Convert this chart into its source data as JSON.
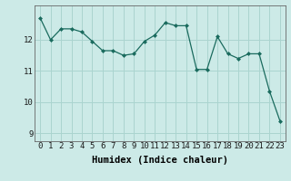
{
  "x": [
    0,
    1,
    2,
    3,
    4,
    5,
    6,
    7,
    8,
    9,
    10,
    11,
    12,
    13,
    14,
    15,
    16,
    17,
    18,
    19,
    20,
    21,
    22,
    23
  ],
  "y": [
    12.7,
    12.0,
    12.35,
    12.35,
    12.25,
    11.95,
    11.65,
    11.65,
    11.5,
    11.55,
    11.95,
    12.15,
    12.55,
    12.45,
    12.45,
    11.05,
    11.05,
    12.1,
    11.55,
    11.4,
    11.55,
    11.55,
    10.35,
    9.4
  ],
  "line_color": "#1a6b5e",
  "marker_color": "#1a6b5e",
  "bg_color": "#cceae7",
  "plot_bg_color": "#cceae7",
  "grid_color": "#aad4cf",
  "xlabel": "Humidex (Indice chaleur)",
  "ylim": [
    8.75,
    13.1
  ],
  "xlim": [
    -0.5,
    23.5
  ],
  "yticks": [
    9,
    10,
    11,
    12
  ],
  "xticks": [
    0,
    1,
    2,
    3,
    4,
    5,
    6,
    7,
    8,
    9,
    10,
    11,
    12,
    13,
    14,
    15,
    16,
    17,
    18,
    19,
    20,
    21,
    22,
    23
  ],
  "xlabel_fontsize": 7.5,
  "tick_fontsize": 6.5
}
